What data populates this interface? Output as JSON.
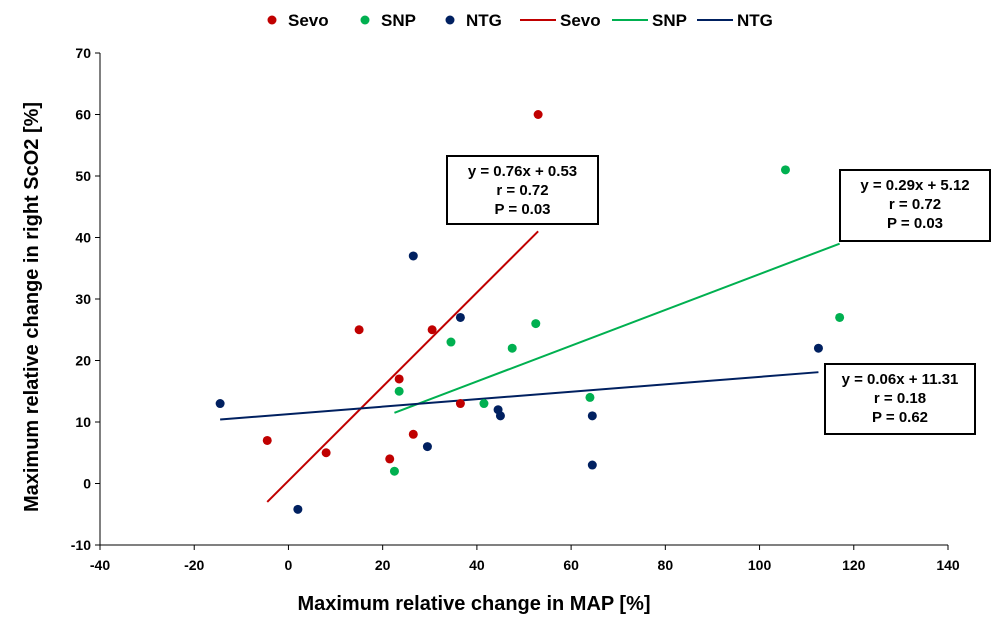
{
  "chart_data": {
    "type": "scatter",
    "xlabel": "Maximum relative change in MAP [%]",
    "ylabel": "Maximum relative change in right ScO2 [%]",
    "xlim": [
      -40,
      140
    ],
    "ylim": [
      -10,
      70
    ],
    "x_ticks": [
      -40,
      -20,
      0,
      20,
      40,
      60,
      80,
      100,
      120,
      140
    ],
    "y_ticks": [
      -10,
      0,
      10,
      20,
      30,
      40,
      50,
      60,
      70
    ],
    "grid": false,
    "legend_position": "top",
    "legend": [
      {
        "label": "Sevo",
        "kind": "marker",
        "series": "Sevo"
      },
      {
        "label": "SNP",
        "kind": "marker",
        "series": "SNP"
      },
      {
        "label": "NTG",
        "kind": "marker",
        "series": "NTG"
      },
      {
        "label": "Sevo",
        "kind": "line",
        "series": "Sevo"
      },
      {
        "label": "SNP",
        "kind": "line",
        "series": "SNP"
      },
      {
        "label": "NTG",
        "kind": "line",
        "series": "NTG"
      }
    ],
    "series": [
      {
        "name": "Sevo",
        "color": "#c00000",
        "points": [
          {
            "x": -4.5,
            "y": 7
          },
          {
            "x": 8,
            "y": 5
          },
          {
            "x": 15,
            "y": 25
          },
          {
            "x": 21.5,
            "y": 4
          },
          {
            "x": 23.5,
            "y": 17
          },
          {
            "x": 26.5,
            "y": 8
          },
          {
            "x": 30.5,
            "y": 25
          },
          {
            "x": 36.5,
            "y": 13
          },
          {
            "x": 53,
            "y": 60
          }
        ],
        "trendline": {
          "x_start": -4.5,
          "x_end": 53,
          "y_start": -3,
          "y_end": 41
        },
        "annotation": [
          "y = 0.76x + 0.53",
          "r = 0.72",
          "P = 0.03"
        ]
      },
      {
        "name": "SNP",
        "color": "#00b050",
        "points": [
          {
            "x": 22.5,
            "y": 2
          },
          {
            "x": 23.5,
            "y": 15
          },
          {
            "x": 34.5,
            "y": 23
          },
          {
            "x": 41.5,
            "y": 13
          },
          {
            "x": 47.5,
            "y": 22
          },
          {
            "x": 52.5,
            "y": 26
          },
          {
            "x": 64,
            "y": 14
          },
          {
            "x": 105.5,
            "y": 51
          },
          {
            "x": 117,
            "y": 27
          }
        ],
        "trendline": {
          "x_start": 22.5,
          "x_end": 117,
          "y_start": 11.5,
          "y_end": 39
        },
        "annotation": [
          "y = 0.29x + 5.12",
          "r = 0.72",
          "P = 0.03"
        ]
      },
      {
        "name": "NTG",
        "color": "#002060",
        "points": [
          {
            "x": -14.5,
            "y": 13
          },
          {
            "x": 2,
            "y": -4.2
          },
          {
            "x": 26.5,
            "y": 37
          },
          {
            "x": 29.5,
            "y": 6
          },
          {
            "x": 36.5,
            "y": 27
          },
          {
            "x": 44.5,
            "y": 12
          },
          {
            "x": 45,
            "y": 11
          },
          {
            "x": 64.5,
            "y": 11
          },
          {
            "x": 64.5,
            "y": 3
          },
          {
            "x": 112.5,
            "y": 22
          }
        ],
        "trendline": {
          "x_start": -14.5,
          "x_end": 112.5,
          "y_start": 10.4,
          "y_end": 18.1
        },
        "annotation": [
          "y = 0.06x + 11.31",
          "r = 0.18",
          "P = 0.62"
        ]
      }
    ]
  }
}
